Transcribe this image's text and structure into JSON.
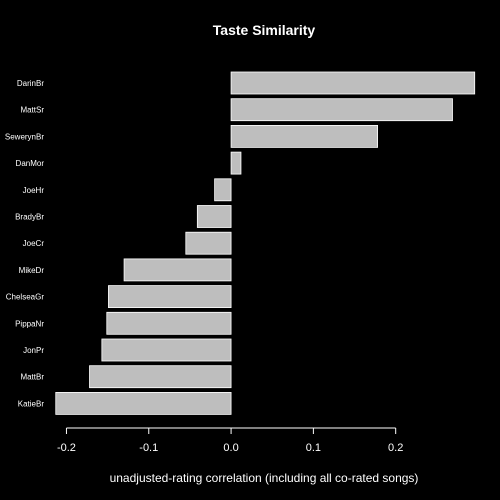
{
  "chart_data": {
    "type": "bar",
    "orientation": "horizontal",
    "title": "Taste Similarity",
    "xlabel": "unadjusted-rating correlation (including all co-rated songs)",
    "ylabel": "",
    "categories": [
      "DarinBr",
      "MattSr",
      "SewerynBr",
      "DanMor",
      "JoeHr",
      "BradyBr",
      "JoeCr",
      "MikeDr",
      "ChelseaGr",
      "PippaNr",
      "JonPr",
      "MattBr",
      "KatieBr"
    ],
    "values": [
      0.296,
      0.269,
      0.178,
      0.012,
      -0.02,
      -0.041,
      -0.055,
      -0.13,
      -0.149,
      -0.151,
      -0.157,
      -0.172,
      -0.213
    ],
    "xlim": [
      -0.22,
      0.3
    ],
    "xticks": [
      -0.2,
      -0.1,
      0.0,
      0.1,
      0.2
    ],
    "xtick_labels": [
      "-0.2",
      "-0.1",
      "0.0",
      "0.1",
      "0.2"
    ],
    "grid": false,
    "legend": "none",
    "colors": {
      "background": "#000000",
      "bar_fill": "#bebebe",
      "bar_stroke": "#ffffff",
      "text": "#ffffff",
      "axis": "#ffffff"
    }
  }
}
